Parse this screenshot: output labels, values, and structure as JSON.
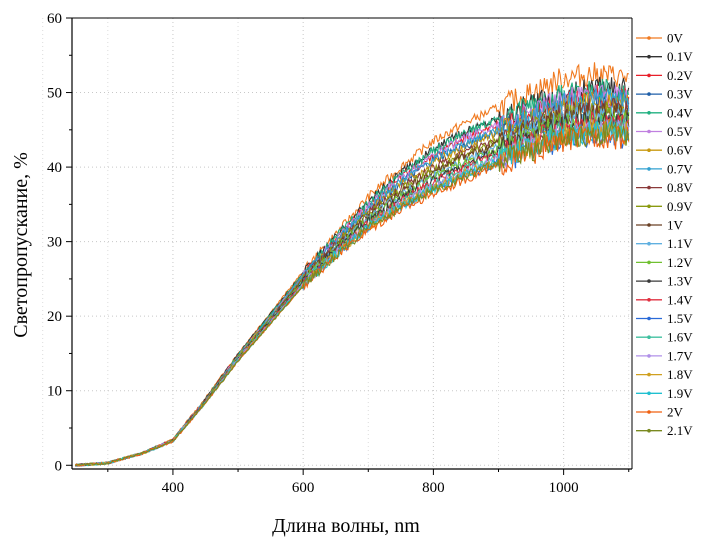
{
  "chart_data": {
    "type": "line",
    "title": "",
    "xlabel": "Длина волны, nm",
    "ylabel": "Светопропускание, %",
    "xlim": [
      245,
      1105
    ],
    "ylim": [
      -0.5,
      60
    ],
    "xticks": [
      400,
      600,
      800,
      1000
    ],
    "yticks": [
      0,
      10,
      20,
      30,
      40,
      50,
      60
    ],
    "grid": true,
    "legend_position": "right",
    "x": [
      250,
      300,
      340,
      350,
      400,
      450,
      500,
      550,
      600,
      650,
      700,
      750,
      800,
      850,
      900,
      950,
      1000,
      1050,
      1100
    ],
    "series": [
      {
        "name": "0V",
        "color": "#f07a20",
        "values": [
          0,
          0.3,
          1.3,
          1.5,
          3.5,
          9,
          15,
          20.5,
          26,
          31,
          36,
          40,
          43.5,
          46,
          48,
          50,
          52,
          52.5,
          52
        ]
      },
      {
        "name": "0.1V",
        "color": "#333333",
        "values": [
          0,
          0.3,
          1.3,
          1.5,
          3.4,
          8.9,
          14.9,
          20.3,
          25.8,
          30.6,
          35.4,
          39.2,
          42.4,
          44.8,
          46.6,
          48.3,
          50,
          50.6,
          50.3
        ]
      },
      {
        "name": "0.2V",
        "color": "#e8202a",
        "values": [
          0,
          0.3,
          1.3,
          1.5,
          3.4,
          8.8,
          14.8,
          20.1,
          25.6,
          30.3,
          34.9,
          38.6,
          41.6,
          43.9,
          45.7,
          47.3,
          49,
          49.6,
          49.3
        ]
      },
      {
        "name": "0.3V",
        "color": "#1f5fa8",
        "values": [
          0,
          0.3,
          1.3,
          1.5,
          3.4,
          8.8,
          14.7,
          20,
          25.4,
          30,
          34.4,
          37.9,
          40.8,
          43,
          44.8,
          46.4,
          48.2,
          48.8,
          48.5
        ]
      },
      {
        "name": "0.4V",
        "color": "#20b080",
        "values": [
          0,
          0.3,
          1.3,
          1.5,
          3.4,
          8.8,
          14.8,
          20.2,
          25.7,
          30.5,
          35.2,
          39,
          42.2,
          44.6,
          46.4,
          48,
          49.8,
          50.4,
          50
        ]
      },
      {
        "name": "0.5V",
        "color": "#c080e0",
        "values": [
          0,
          0.3,
          1.3,
          1.5,
          3.4,
          8.7,
          14.7,
          20,
          25.5,
          30.2,
          34.8,
          38.5,
          41.6,
          43.9,
          45.7,
          47.3,
          49.1,
          49.7,
          49.3
        ]
      },
      {
        "name": "0.6V",
        "color": "#c89a10",
        "values": [
          0,
          0.3,
          1.3,
          1.5,
          3.4,
          8.7,
          14.6,
          19.9,
          25.3,
          29.8,
          34.2,
          37.7,
          40.6,
          42.8,
          44.6,
          46.2,
          48,
          48.6,
          48.2
        ]
      },
      {
        "name": "0.7V",
        "color": "#30a0d0",
        "values": [
          0,
          0.3,
          1.3,
          1.5,
          3.4,
          8.7,
          14.6,
          19.9,
          25.4,
          30,
          34.5,
          38.1,
          41.1,
          43.3,
          45.1,
          46.7,
          48.5,
          49.1,
          48.7
        ]
      },
      {
        "name": "0.8V",
        "color": "#8b3a3a",
        "values": [
          0,
          0.3,
          1.3,
          1.5,
          3.3,
          8.6,
          14.5,
          19.7,
          25.1,
          29.5,
          33.8,
          37.2,
          39.9,
          42,
          43.8,
          45.4,
          47.2,
          47.8,
          47.5
        ]
      },
      {
        "name": "0.9V",
        "color": "#8a9a10",
        "values": [
          0,
          0.3,
          1.3,
          1.5,
          3.3,
          8.6,
          14.5,
          19.7,
          25,
          29.4,
          33.6,
          36.9,
          39.6,
          41.7,
          43.5,
          45.1,
          46.9,
          47.5,
          47.2
        ]
      },
      {
        "name": "1V",
        "color": "#6b4226",
        "values": [
          0,
          0.3,
          1.3,
          1.5,
          3.3,
          8.6,
          14.4,
          19.6,
          24.9,
          29.2,
          33.3,
          36.6,
          39.3,
          41.4,
          43.2,
          44.8,
          46.6,
          47.2,
          46.9
        ]
      },
      {
        "name": "1.1V",
        "color": "#60b0e0",
        "values": [
          0,
          0.3,
          1.3,
          1.5,
          3.3,
          8.5,
          14.4,
          19.5,
          24.8,
          29,
          33.1,
          36.3,
          38.9,
          41,
          42.8,
          44.4,
          46.2,
          46.8,
          46.4
        ]
      },
      {
        "name": "1.2V",
        "color": "#70c030",
        "values": [
          0,
          0.3,
          1.3,
          1.5,
          3.3,
          8.5,
          14.3,
          19.4,
          24.7,
          28.9,
          32.9,
          36,
          38.6,
          40.7,
          42.5,
          44.1,
          45.9,
          46.5,
          46.1
        ]
      },
      {
        "name": "1.3V",
        "color": "#3a3a3a",
        "values": [
          0,
          0.3,
          1.3,
          1.5,
          3.3,
          8.5,
          14.3,
          19.4,
          24.6,
          28.8,
          32.7,
          35.8,
          38.3,
          40.4,
          42.2,
          43.8,
          45.6,
          46.2,
          45.8
        ]
      },
      {
        "name": "1.4V",
        "color": "#e03040",
        "values": [
          0,
          0.3,
          1.3,
          1.5,
          3.3,
          8.5,
          14.2,
          19.3,
          24.5,
          28.6,
          32.5,
          35.5,
          38,
          40.1,
          41.9,
          43.5,
          45.3,
          45.9,
          45.5
        ]
      },
      {
        "name": "1.5V",
        "color": "#2a6ad8",
        "values": [
          0,
          0.3,
          1.3,
          1.5,
          3.2,
          8.4,
          14.1,
          19.1,
          24.2,
          28.2,
          31.9,
          34.7,
          37,
          38.9,
          40.6,
          42.1,
          43.8,
          44.3,
          43.9
        ]
      },
      {
        "name": "1.6V",
        "color": "#40c0a0",
        "values": [
          0,
          0.3,
          1.3,
          1.5,
          3.3,
          8.4,
          14.2,
          19.2,
          24.4,
          28.5,
          32.3,
          35.2,
          37.7,
          39.7,
          41.5,
          43.1,
          44.9,
          45.5,
          45.1
        ]
      },
      {
        "name": "1.7V",
        "color": "#b090e8",
        "values": [
          0,
          0.3,
          1.3,
          1.5,
          3.3,
          8.4,
          14.2,
          19.2,
          24.3,
          28.4,
          32.1,
          35,
          37.4,
          39.4,
          41.2,
          42.8,
          44.6,
          45.2,
          44.8
        ]
      },
      {
        "name": "1.8V",
        "color": "#d0a020",
        "values": [
          0,
          0.3,
          1.3,
          1.5,
          3.2,
          8.4,
          14.1,
          19.1,
          24.2,
          28.3,
          32,
          34.8,
          37.2,
          39.2,
          41,
          42.6,
          44.4,
          45,
          44.6
        ]
      },
      {
        "name": "1.9V",
        "color": "#20c0d0",
        "values": [
          0,
          0.3,
          1.3,
          1.5,
          3.2,
          8.4,
          14.1,
          19.1,
          24.2,
          28.2,
          31.9,
          34.7,
          37.1,
          39.1,
          40.9,
          42.5,
          44.3,
          44.9,
          44.5
        ]
      },
      {
        "name": "2V",
        "color": "#f06010",
        "values": [
          0,
          0.3,
          1.3,
          1.5,
          3.2,
          8.3,
          14,
          19,
          24,
          28,
          31.6,
          34.3,
          36.5,
          38.4,
          40.2,
          41.8,
          43.6,
          44.2,
          43.8
        ]
      },
      {
        "name": "2.1V",
        "color": "#7a8a20",
        "values": [
          0,
          0.3,
          1.3,
          1.5,
          3.2,
          8.4,
          14,
          19,
          24.1,
          28.1,
          31.8,
          34.6,
          36.9,
          38.8,
          40.6,
          42.2,
          44,
          44.6,
          44.2
        ]
      }
    ]
  }
}
